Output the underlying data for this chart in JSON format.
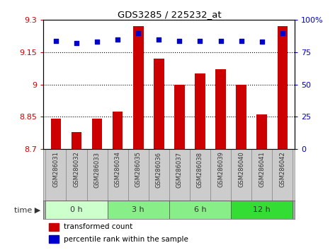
{
  "title": "GDS3285 / 225232_at",
  "categories": [
    "GSM286031",
    "GSM286032",
    "GSM286033",
    "GSM286034",
    "GSM286035",
    "GSM286036",
    "GSM286037",
    "GSM286038",
    "GSM286039",
    "GSM286040",
    "GSM286041",
    "GSM286042"
  ],
  "bar_values": [
    8.84,
    8.78,
    8.84,
    8.875,
    9.27,
    9.12,
    9.0,
    9.05,
    9.07,
    9.0,
    8.86,
    9.27
  ],
  "percentile_values": [
    84,
    82,
    83,
    85,
    90,
    85,
    84,
    84,
    84,
    84,
    83,
    90
  ],
  "ylim_left": [
    8.7,
    9.3
  ],
  "ylim_right": [
    0,
    100
  ],
  "yticks_left": [
    8.7,
    8.85,
    9.0,
    9.15,
    9.3
  ],
  "yticks_right": [
    0,
    25,
    50,
    75,
    100
  ],
  "ytick_labels_left": [
    "8.7",
    "8.85",
    "9",
    "9.15",
    "9.3"
  ],
  "ytick_labels_right": [
    "0",
    "25",
    "50",
    "75",
    "100%"
  ],
  "bar_color": "#cc0000",
  "percentile_color": "#0000cc",
  "bg_color": "#ffffff",
  "plot_bg": "#ffffff",
  "time_groups": [
    {
      "label": "0 h",
      "indices": [
        0,
        1,
        2
      ],
      "color": "#ccffcc"
    },
    {
      "label": "3 h",
      "indices": [
        3,
        4,
        5
      ],
      "color": "#88ee88"
    },
    {
      "label": "6 h",
      "indices": [
        6,
        7,
        8
      ],
      "color": "#88ee88"
    },
    {
      "label": "12 h",
      "indices": [
        9,
        10,
        11
      ],
      "color": "#33dd33"
    }
  ],
  "legend_bar_label": "transformed count",
  "legend_pct_label": "percentile rank within the sample",
  "xlabel_time": "time",
  "dotted_line_color": "#000000",
  "tick_label_color_left": "#cc0000",
  "tick_label_color_right": "#0000cc",
  "bar_width": 0.5,
  "xlabel_bg": "#cccccc",
  "xtick_area_bg": "#cccccc"
}
